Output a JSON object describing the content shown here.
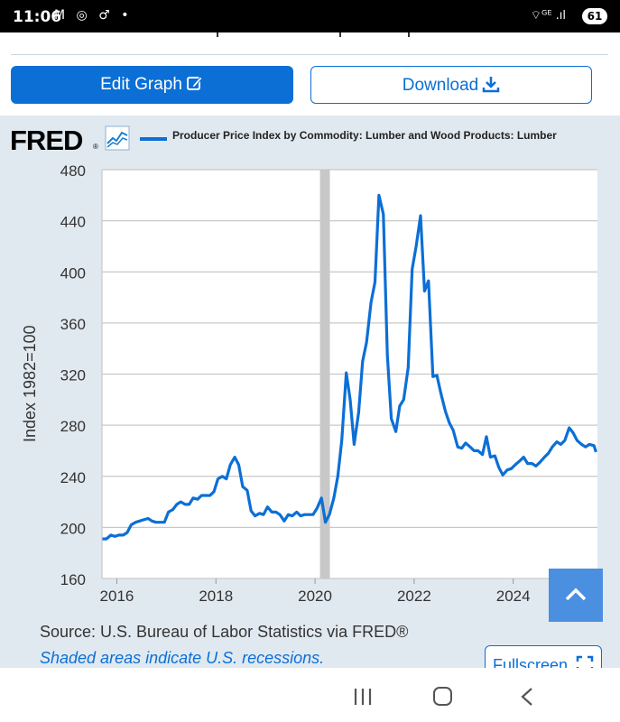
{
  "status_bar": {
    "time": "11:06",
    "left_icons": [
      "gmail-icon",
      "chrome-icon",
      "app-icon",
      "notification-dot"
    ],
    "left_icons_text": "M ◎ ♂ •",
    "right_icons_text": "⌔ᴳᴱ .ıl",
    "battery": "61"
  },
  "toolbar": {
    "edit_label": "Edit Graph",
    "download_label": "Download"
  },
  "graph": {
    "logo": "FRED",
    "logo_reg": "®",
    "legend_label": "Producer Price Index by Commodity: Lumber and Wood Products: Lumber",
    "source": "Source: U.S. Bureau of Labor Statistics via FRED®",
    "shaded_note": "Shaded areas indicate U.S. recessions.",
    "fullscreen_label": "Fullscreen",
    "series_color": "#0b6fd6",
    "recession_color": "#c8c8c8"
  },
  "chart_data": {
    "type": "line",
    "title": "",
    "xlabel": "",
    "ylabel": "Index 1982=100",
    "ylim": [
      160,
      480
    ],
    "xlim": [
      2015.7,
      2025.7
    ],
    "yticks": [
      160,
      200,
      240,
      280,
      320,
      360,
      400,
      440,
      480
    ],
    "xticks": [
      2016,
      2018,
      2020,
      2022,
      2024
    ],
    "grid": true,
    "recessions": [
      [
        2020.1,
        2020.3
      ]
    ],
    "series": [
      {
        "name": "Producer Price Index by Commodity: Lumber and Wood Products: Lumber",
        "x": [
          2015.71,
          2015.79,
          2015.88,
          2015.96,
          2016.04,
          2016.13,
          2016.21,
          2016.29,
          2016.38,
          2016.46,
          2016.54,
          2016.63,
          2016.71,
          2016.79,
          2016.88,
          2016.96,
          2017.04,
          2017.13,
          2017.21,
          2017.29,
          2017.38,
          2017.46,
          2017.54,
          2017.63,
          2017.71,
          2017.79,
          2017.88,
          2017.96,
          2018.04,
          2018.13,
          2018.21,
          2018.29,
          2018.38,
          2018.46,
          2018.54,
          2018.63,
          2018.71,
          2018.79,
          2018.88,
          2018.96,
          2019.04,
          2019.13,
          2019.21,
          2019.29,
          2019.38,
          2019.46,
          2019.54,
          2019.63,
          2019.71,
          2019.79,
          2019.88,
          2019.96,
          2020.04,
          2020.13,
          2020.21,
          2020.29,
          2020.38,
          2020.46,
          2020.54,
          2020.63,
          2020.71,
          2020.79,
          2020.88,
          2020.96,
          2021.04,
          2021.13,
          2021.21,
          2021.29,
          2021.38,
          2021.46,
          2021.54,
          2021.63,
          2021.71,
          2021.79,
          2021.88,
          2021.96,
          2022.04,
          2022.13,
          2022.21,
          2022.29,
          2022.38,
          2022.46,
          2022.54,
          2022.63,
          2022.71,
          2022.79,
          2022.88,
          2022.96,
          2023.04,
          2023.13,
          2023.21,
          2023.29,
          2023.38,
          2023.46,
          2023.54,
          2023.63,
          2023.71,
          2023.79,
          2023.88,
          2023.96,
          2024.04,
          2024.13,
          2024.21,
          2024.29,
          2024.38,
          2024.46,
          2024.54,
          2024.63,
          2024.71,
          2024.79,
          2024.88,
          2024.96,
          2025.04,
          2025.13,
          2025.21,
          2025.29,
          2025.38,
          2025.46,
          2025.54,
          2025.63,
          2025.67
        ],
        "values": [
          191,
          191,
          194,
          193,
          194,
          194,
          196,
          202,
          204,
          205,
          206,
          207,
          205,
          204,
          204,
          204,
          212,
          214,
          218,
          220,
          218,
          218,
          223,
          222,
          225,
          225,
          225,
          228,
          238,
          240,
          238,
          249,
          255,
          249,
          232,
          229,
          213,
          209,
          211,
          210,
          216,
          212,
          212,
          210,
          205,
          210,
          209,
          212,
          209,
          210,
          210,
          210,
          215,
          223,
          204,
          210,
          223,
          240,
          268,
          321,
          300,
          265,
          290,
          330,
          345,
          376,
          392,
          460,
          445,
          335,
          285,
          275,
          295,
          300,
          325,
          402,
          420,
          444,
          385,
          393,
          318,
          319,
          305,
          291,
          282,
          276,
          263,
          262,
          266,
          263,
          260,
          260,
          257,
          271,
          255,
          256,
          247,
          241,
          245,
          246,
          249,
          252,
          255,
          250,
          250,
          248,
          251,
          255,
          258,
          263,
          267,
          265,
          268,
          278,
          274,
          268,
          265,
          263,
          265,
          264,
          259
        ]
      }
    ]
  },
  "overlay": {
    "scroll_up_label": "scroll to top"
  }
}
